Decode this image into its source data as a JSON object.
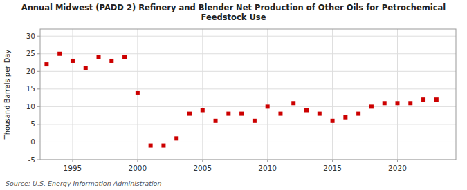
{
  "chart_data": {
    "type": "scatter",
    "title": "Annual Midwest (PADD 2) Refinery and Blender Net Production of Other Oils for Petrochemical\nFeedstock Use",
    "ylabel": "Thousand Barrels per Day",
    "source": "Source: U.S. Energy Information Administration",
    "x": [
      1993,
      1994,
      1995,
      1996,
      1997,
      1998,
      1999,
      2000,
      2001,
      2002,
      2003,
      2004,
      2005,
      2006,
      2007,
      2008,
      2009,
      2010,
      2011,
      2012,
      2013,
      2014,
      2015,
      2016,
      2017,
      2018,
      2019,
      2020,
      2021,
      2022,
      2023
    ],
    "values": [
      22,
      25,
      23,
      21,
      24,
      23,
      24,
      14,
      -1,
      -1,
      1,
      8,
      9,
      6,
      8,
      8,
      6,
      10,
      8,
      11,
      9,
      8,
      6,
      7,
      8,
      10,
      11,
      11,
      11,
      12,
      12
    ],
    "color": "#cc0000",
    "marker": "square",
    "xlim": [
      1992.5,
      2024.5
    ],
    "xticks": [
      1995,
      2000,
      2005,
      2010,
      2015,
      2020
    ],
    "ylim": [
      -5,
      32
    ],
    "yticks": [
      -5,
      0,
      5,
      10,
      15,
      20,
      25,
      30
    ],
    "grid": true
  }
}
